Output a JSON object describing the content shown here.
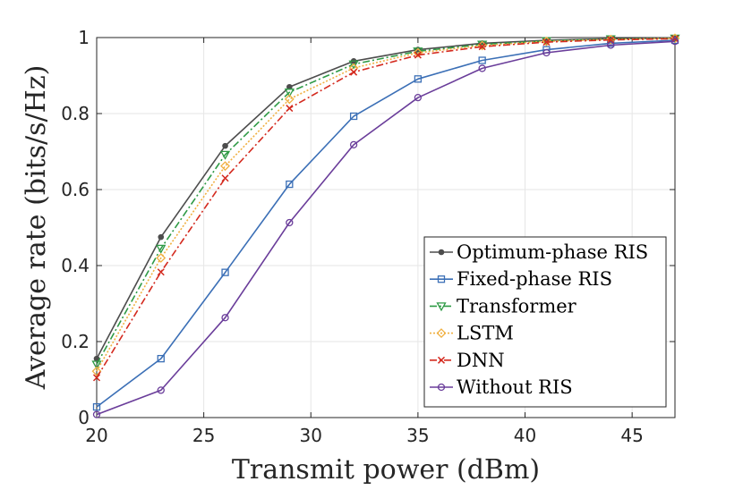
{
  "chart_data": {
    "type": "line",
    "title": "",
    "xlabel": "Transmit power (dBm)",
    "ylabel": "Average rate (bits/s/Hz)",
    "xlim": [
      20,
      47
    ],
    "ylim": [
      0,
      1
    ],
    "xticks": [
      "20",
      "25",
      "30",
      "35",
      "40",
      "45"
    ],
    "yticks": [
      "0",
      "0.2",
      "0.4",
      "0.6",
      "0.8",
      "1"
    ],
    "grid": true,
    "legend_position": "bottom-right",
    "x": [
      20,
      23,
      26,
      29,
      32,
      35,
      38,
      41,
      44,
      47
    ],
    "series": [
      {
        "name": "Optimum-phase RIS",
        "values": [
          0.155,
          0.475,
          0.715,
          0.87,
          0.938,
          0.968,
          0.985,
          0.993,
          0.997,
          0.999
        ],
        "color": "#4d4d4d",
        "marker": "dot",
        "dash": "solid"
      },
      {
        "name": "Fixed-phase RIS",
        "values": [
          0.028,
          0.155,
          0.382,
          0.614,
          0.793,
          0.891,
          0.94,
          0.968,
          0.985,
          0.993
        ],
        "color": "#3b6fb6",
        "marker": "square",
        "dash": "solid"
      },
      {
        "name": "Transformer",
        "values": [
          0.14,
          0.445,
          0.692,
          0.856,
          0.93,
          0.964,
          0.982,
          0.991,
          0.996,
          0.998
        ],
        "color": "#2e9a45",
        "marker": "triangle-down",
        "dash": "dashdot"
      },
      {
        "name": "LSTM",
        "values": [
          0.122,
          0.42,
          0.662,
          0.838,
          0.92,
          0.96,
          0.979,
          0.99,
          0.995,
          0.998
        ],
        "color": "#f0b041",
        "marker": "diamond",
        "dash": "dotted"
      },
      {
        "name": "DNN",
        "values": [
          0.105,
          0.383,
          0.63,
          0.814,
          0.909,
          0.954,
          0.976,
          0.988,
          0.994,
          0.997
        ],
        "color": "#d42a1f",
        "marker": "x",
        "dash": "dashdot"
      },
      {
        "name": "Without RIS",
        "values": [
          0.008,
          0.072,
          0.263,
          0.513,
          0.718,
          0.842,
          0.919,
          0.96,
          0.98,
          0.99
        ],
        "color": "#6a3d9a",
        "marker": "circle",
        "dash": "solid"
      }
    ]
  }
}
